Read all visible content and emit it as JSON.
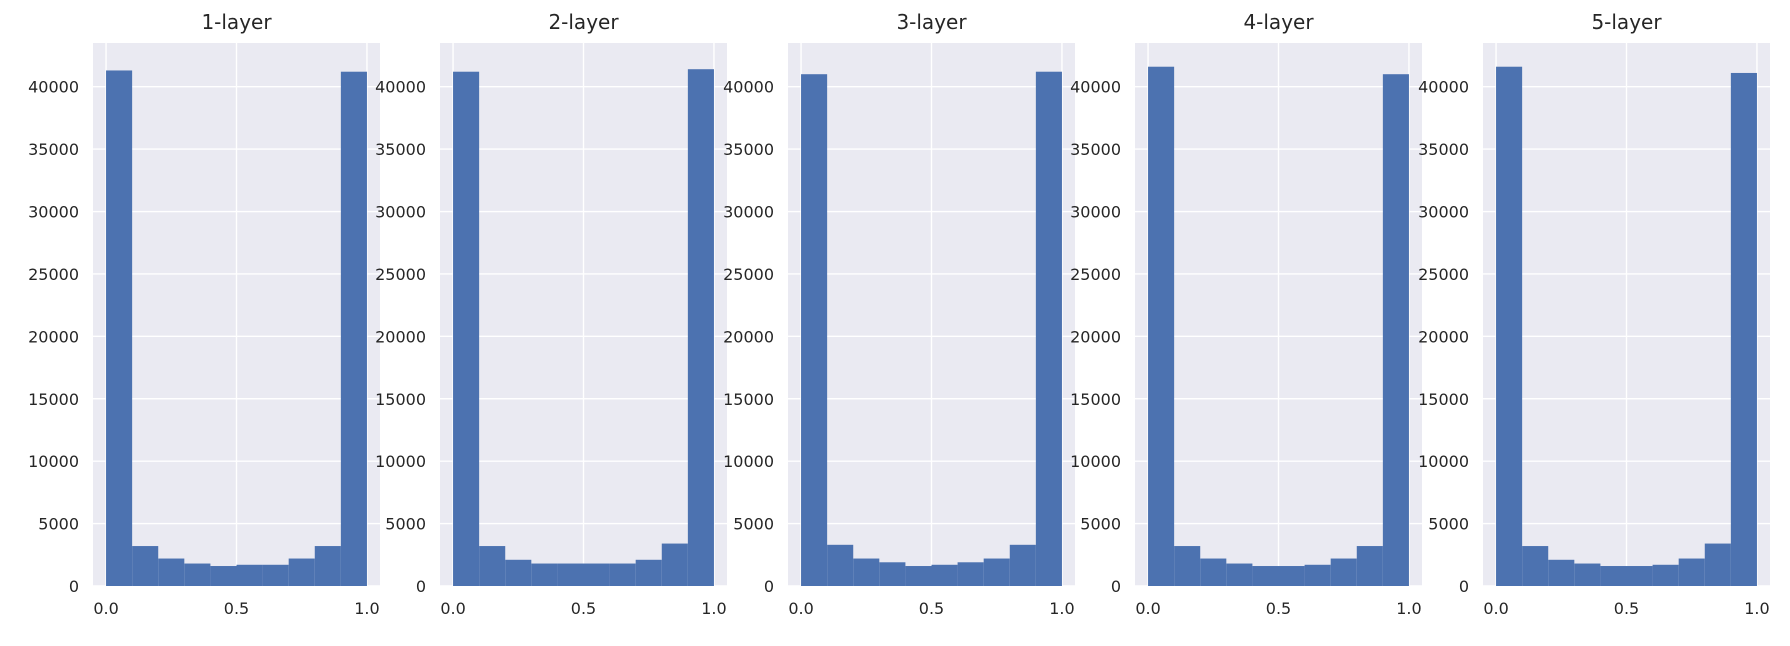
{
  "chart_data": [
    {
      "type": "bar",
      "title": "1-layer",
      "xlim": [
        -0.05,
        1.05
      ],
      "ylim": [
        0,
        43500
      ],
      "xticks": [
        0.0,
        0.5,
        1.0
      ],
      "xtick_labels": [
        "0.0",
        "0.5",
        "1.0"
      ],
      "yticks": [
        0,
        5000,
        10000,
        15000,
        20000,
        25000,
        30000,
        35000,
        40000
      ],
      "ytick_labels": [
        "0",
        "5000",
        "10000",
        "15000",
        "20000",
        "25000",
        "30000",
        "35000",
        "40000"
      ],
      "grid": true,
      "bar_color": "#4c72b0",
      "bin_edges": [
        0.0,
        0.1,
        0.2,
        0.3,
        0.4,
        0.5,
        0.6,
        0.7,
        0.8,
        0.9,
        1.0
      ],
      "values": [
        41300,
        3200,
        2200,
        1800,
        1600,
        1700,
        1700,
        2200,
        3200,
        41200
      ]
    },
    {
      "type": "bar",
      "title": "2-layer",
      "xlim": [
        -0.05,
        1.05
      ],
      "ylim": [
        0,
        43500
      ],
      "xticks": [
        0.0,
        0.5,
        1.0
      ],
      "xtick_labels": [
        "0.0",
        "0.5",
        "1.0"
      ],
      "yticks": [
        0,
        5000,
        10000,
        15000,
        20000,
        25000,
        30000,
        35000,
        40000
      ],
      "ytick_labels": [
        "0",
        "5000",
        "10000",
        "15000",
        "20000",
        "25000",
        "30000",
        "35000",
        "40000"
      ],
      "grid": true,
      "bar_color": "#4c72b0",
      "bin_edges": [
        0.0,
        0.1,
        0.2,
        0.3,
        0.4,
        0.5,
        0.6,
        0.7,
        0.8,
        0.9,
        1.0
      ],
      "values": [
        41200,
        3200,
        2100,
        1800,
        1800,
        1800,
        1800,
        2100,
        3400,
        41400
      ]
    },
    {
      "type": "bar",
      "title": "3-layer",
      "xlim": [
        -0.05,
        1.05
      ],
      "ylim": [
        0,
        43500
      ],
      "xticks": [
        0.0,
        0.5,
        1.0
      ],
      "xtick_labels": [
        "0.0",
        "0.5",
        "1.0"
      ],
      "yticks": [
        0,
        5000,
        10000,
        15000,
        20000,
        25000,
        30000,
        35000,
        40000
      ],
      "ytick_labels": [
        "0",
        "5000",
        "10000",
        "15000",
        "20000",
        "25000",
        "30000",
        "35000",
        "40000"
      ],
      "grid": true,
      "bar_color": "#4c72b0",
      "bin_edges": [
        0.0,
        0.1,
        0.2,
        0.3,
        0.4,
        0.5,
        0.6,
        0.7,
        0.8,
        0.9,
        1.0
      ],
      "values": [
        41000,
        3300,
        2200,
        1900,
        1600,
        1700,
        1900,
        2200,
        3300,
        41200
      ]
    },
    {
      "type": "bar",
      "title": "4-layer",
      "xlim": [
        -0.05,
        1.05
      ],
      "ylim": [
        0,
        43500
      ],
      "xticks": [
        0.0,
        0.5,
        1.0
      ],
      "xtick_labels": [
        "0.0",
        "0.5",
        "1.0"
      ],
      "yticks": [
        0,
        5000,
        10000,
        15000,
        20000,
        25000,
        30000,
        35000,
        40000
      ],
      "ytick_labels": [
        "0",
        "5000",
        "10000",
        "15000",
        "20000",
        "25000",
        "30000",
        "35000",
        "40000"
      ],
      "grid": true,
      "bar_color": "#4c72b0",
      "bin_edges": [
        0.0,
        0.1,
        0.2,
        0.3,
        0.4,
        0.5,
        0.6,
        0.7,
        0.8,
        0.9,
        1.0
      ],
      "values": [
        41600,
        3200,
        2200,
        1800,
        1600,
        1600,
        1700,
        2200,
        3200,
        41000
      ]
    },
    {
      "type": "bar",
      "title": "5-layer",
      "xlim": [
        -0.05,
        1.05
      ],
      "ylim": [
        0,
        43500
      ],
      "xticks": [
        0.0,
        0.5,
        1.0
      ],
      "xtick_labels": [
        "0.0",
        "0.5",
        "1.0"
      ],
      "yticks": [
        0,
        5000,
        10000,
        15000,
        20000,
        25000,
        30000,
        35000,
        40000
      ],
      "ytick_labels": [
        "0",
        "5000",
        "10000",
        "15000",
        "20000",
        "25000",
        "30000",
        "35000",
        "40000"
      ],
      "grid": true,
      "bar_color": "#4c72b0",
      "bin_edges": [
        0.0,
        0.1,
        0.2,
        0.3,
        0.4,
        0.5,
        0.6,
        0.7,
        0.8,
        0.9,
        1.0
      ],
      "values": [
        41600,
        3200,
        2100,
        1800,
        1600,
        1600,
        1700,
        2200,
        3400,
        41100
      ]
    }
  ]
}
